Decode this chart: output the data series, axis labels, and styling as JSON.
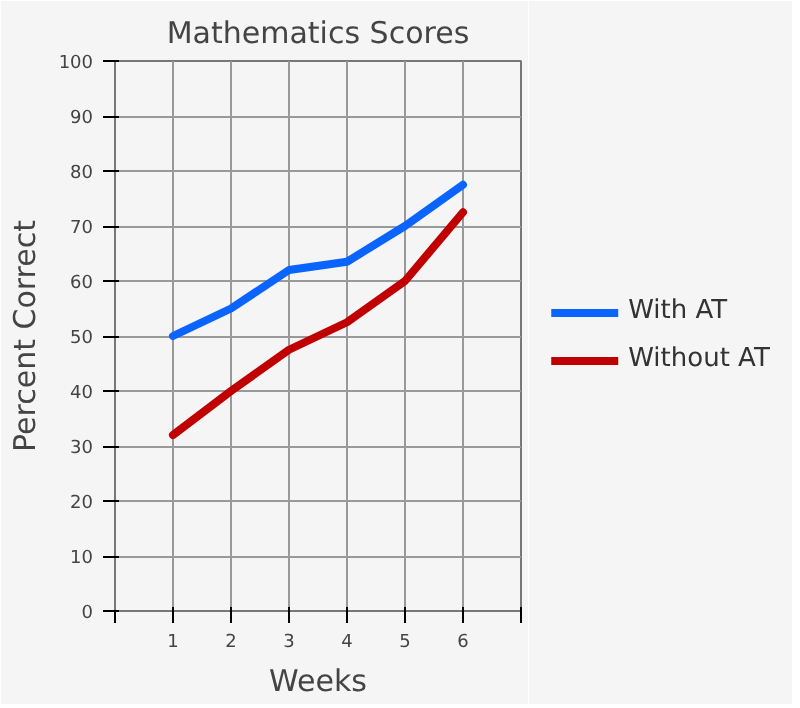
{
  "chart_data": {
    "type": "line",
    "title": "Mathematics Scores",
    "xlabel": "Weeks",
    "ylabel": "Percent Correct",
    "x": [
      1,
      2,
      3,
      4,
      5,
      6
    ],
    "series": [
      {
        "name": "With AT",
        "color": "#0a64ff",
        "values": [
          50,
          55,
          62,
          63.5,
          70,
          77.5
        ]
      },
      {
        "name": "Without AT",
        "color": "#c00000",
        "values": [
          32,
          40,
          47.5,
          52.5,
          60,
          72.5
        ]
      }
    ],
    "xlim": [
      0,
      7
    ],
    "xticks": [
      {
        "value": 0,
        "label": null
      },
      1,
      2,
      3,
      4,
      5,
      6,
      {
        "value": 7,
        "label": null
      }
    ],
    "ylim": [
      0,
      100
    ],
    "yticks": [
      0,
      10,
      20,
      30,
      40,
      50,
      60,
      70,
      80,
      90,
      100
    ],
    "grid": true,
    "legend": "right",
    "marker": "none",
    "line_style": "solid"
  }
}
